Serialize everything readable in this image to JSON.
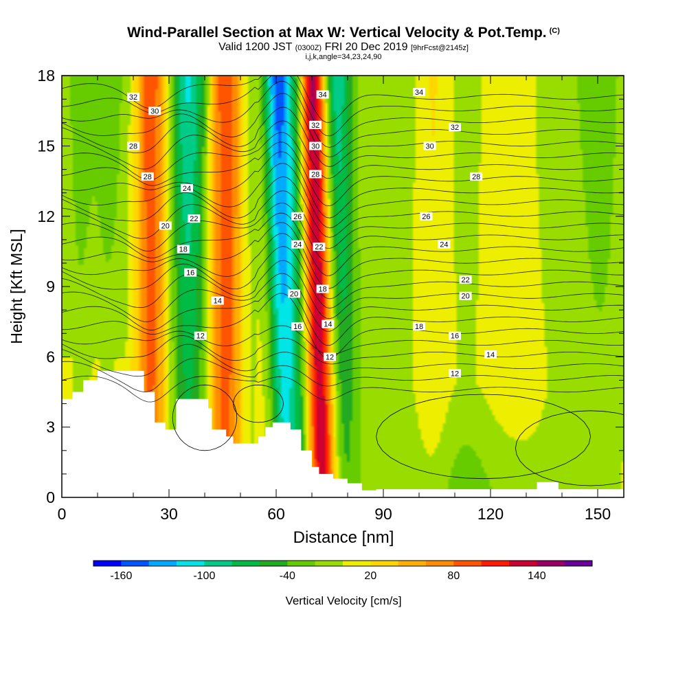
{
  "titles": {
    "main": "Wind-Parallel Section at Max W: Vertical Velocity & Pot.Temp.",
    "copyright": "(C)",
    "valid_prefix": "Valid 1200 JST",
    "valid_utc": "(0300Z)",
    "valid_date": "FRI 20 Dec 2019",
    "forecast": "[9hrFcst@2145z]",
    "params": "i,j,k,angle=34,23,24,90"
  },
  "chart_data": {
    "type": "heatmap",
    "title": "Wind-Parallel Section at Max W: Vertical Velocity & Pot.Temp.",
    "xlabel": "Distance [nm]",
    "ylabel": "Height [Kft MSL]",
    "xlim": [
      0,
      158
    ],
    "ylim": [
      0,
      18
    ],
    "x_ticks": [
      "0",
      "30",
      "60",
      "90",
      "120",
      "150"
    ],
    "y_ticks": [
      "0",
      "3",
      "6",
      "9",
      "12",
      "15",
      "18"
    ],
    "colorbar": {
      "label": "Vertical Velocity [cm/s]",
      "tick_labels": [
        "-160",
        "-100",
        "-40",
        "20",
        "80",
        "140"
      ],
      "colors": [
        "#0000ff",
        "#0055ff",
        "#00aaff",
        "#00e5e5",
        "#00cc88",
        "#00bb44",
        "#22aa22",
        "#66cc00",
        "#99dd00",
        "#eeee00",
        "#ffd700",
        "#ffb000",
        "#ff8c00",
        "#ff5500",
        "#ff1a00",
        "#cc0033",
        "#990066",
        "#660099"
      ]
    },
    "w_features": [
      {
        "x": 5,
        "w": -40
      },
      {
        "x": 13,
        "w": -40
      },
      {
        "x": 25,
        "w": 80
      },
      {
        "x": 35,
        "w": -100
      },
      {
        "x": 46,
        "w": 80
      },
      {
        "x": 62,
        "w": -160
      },
      {
        "x": 72,
        "w": 140
      },
      {
        "x": 78,
        "w": -100
      },
      {
        "x": 96,
        "w": -20
      },
      {
        "x": 113,
        "w": -20
      },
      {
        "x": 152,
        "w": -40
      }
    ],
    "theta_contours": [
      {
        "label": "12",
        "label_positions": [
          [
            38.8,
            6.9
          ],
          [
            75,
            6.0
          ],
          [
            110,
            5.3
          ]
        ]
      },
      {
        "label": "14",
        "label_positions": [
          [
            43.6,
            8.4
          ],
          [
            74.5,
            7.4
          ],
          [
            120,
            6.1
          ]
        ]
      },
      {
        "label": "16",
        "label_positions": [
          [
            36,
            9.6
          ],
          [
            66,
            7.3
          ],
          [
            110,
            6.9
          ]
        ]
      },
      {
        "label": "18",
        "label_positions": [
          [
            34,
            10.6
          ],
          [
            73,
            8.9
          ],
          [
            100,
            7.3
          ]
        ]
      },
      {
        "label": "20",
        "label_positions": [
          [
            29,
            11.6
          ],
          [
            65,
            8.7
          ],
          [
            113,
            8.6
          ]
        ]
      },
      {
        "label": "22",
        "label_positions": [
          [
            37,
            11.9
          ],
          [
            72,
            10.7
          ],
          [
            113,
            9.3
          ]
        ]
      },
      {
        "label": "24",
        "label_positions": [
          [
            35,
            13.2
          ],
          [
            66,
            10.8
          ],
          [
            107,
            10.8
          ]
        ]
      },
      {
        "label": "26",
        "label_positions": [
          [
            66,
            12.0
          ],
          [
            102,
            12.0
          ]
        ]
      },
      {
        "label": "28",
        "label_positions": [
          [
            20,
            15.0
          ],
          [
            24,
            13.7
          ],
          [
            71,
            13.8
          ],
          [
            116,
            13.7
          ]
        ]
      },
      {
        "label": "30",
        "label_positions": [
          [
            26,
            16.5
          ],
          [
            71,
            15.0
          ],
          [
            103,
            15.0
          ]
        ]
      },
      {
        "label": "32",
        "label_positions": [
          [
            20,
            17.1
          ],
          [
            71,
            15.9
          ],
          [
            110,
            15.8
          ]
        ]
      },
      {
        "label": "34",
        "label_positions": [
          [
            73,
            17.2
          ],
          [
            100,
            17.3
          ]
        ]
      }
    ]
  }
}
